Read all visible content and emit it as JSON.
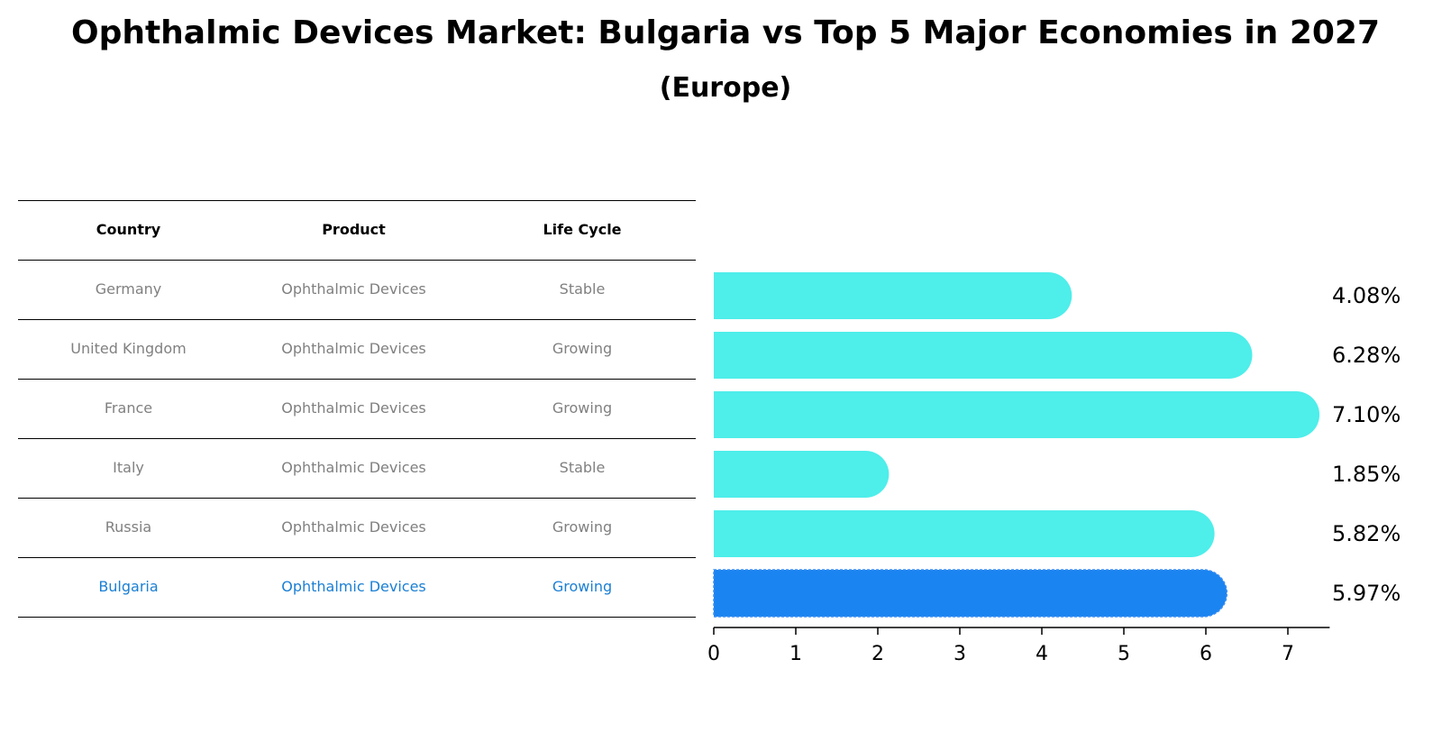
{
  "title": "Ophthalmic Devices Market: Bulgaria vs Top 5 Major Economies in 2027",
  "subtitle": "(Europe)",
  "table": {
    "headers": [
      "Country",
      "Product",
      "Life Cycle"
    ],
    "rows": [
      {
        "country": "Germany",
        "product": "Ophthalmic Devices",
        "life_cycle": "Stable",
        "highlight": false
      },
      {
        "country": "United Kingdom",
        "product": "Ophthalmic Devices",
        "life_cycle": "Growing",
        "highlight": false
      },
      {
        "country": "France",
        "product": "Ophthalmic Devices",
        "life_cycle": "Growing",
        "highlight": false
      },
      {
        "country": "Italy",
        "product": "Ophthalmic Devices",
        "life_cycle": "Stable",
        "highlight": false
      },
      {
        "country": "Russia",
        "product": "Ophthalmic Devices",
        "life_cycle": "Growing",
        "highlight": false
      },
      {
        "country": "Bulgaria",
        "product": "Ophthalmic Devices",
        "life_cycle": "Growing",
        "highlight": true
      }
    ]
  },
  "chart_data": {
    "type": "bar",
    "orientation": "horizontal",
    "title": "Ophthalmic Devices Market: Bulgaria vs Top 5 Major Economies in 2027",
    "subtitle": "(Europe)",
    "categories": [
      "Germany",
      "United Kingdom",
      "France",
      "Italy",
      "Russia",
      "Bulgaria"
    ],
    "values": [
      4.08,
      6.28,
      7.1,
      1.85,
      5.82,
      5.97
    ],
    "value_labels": [
      "4.08%",
      "6.28%",
      "7.10%",
      "1.85%",
      "5.82%",
      "5.97%"
    ],
    "xlim": [
      0,
      7.4
    ],
    "xticks": [
      0,
      1,
      2,
      3,
      4,
      5,
      6,
      7
    ],
    "xlabel": "",
    "ylabel": "",
    "grid": false,
    "colors": {
      "default": "#4eeeea",
      "highlight": "#1a84f0"
    },
    "highlight_category": "Bulgaria"
  }
}
